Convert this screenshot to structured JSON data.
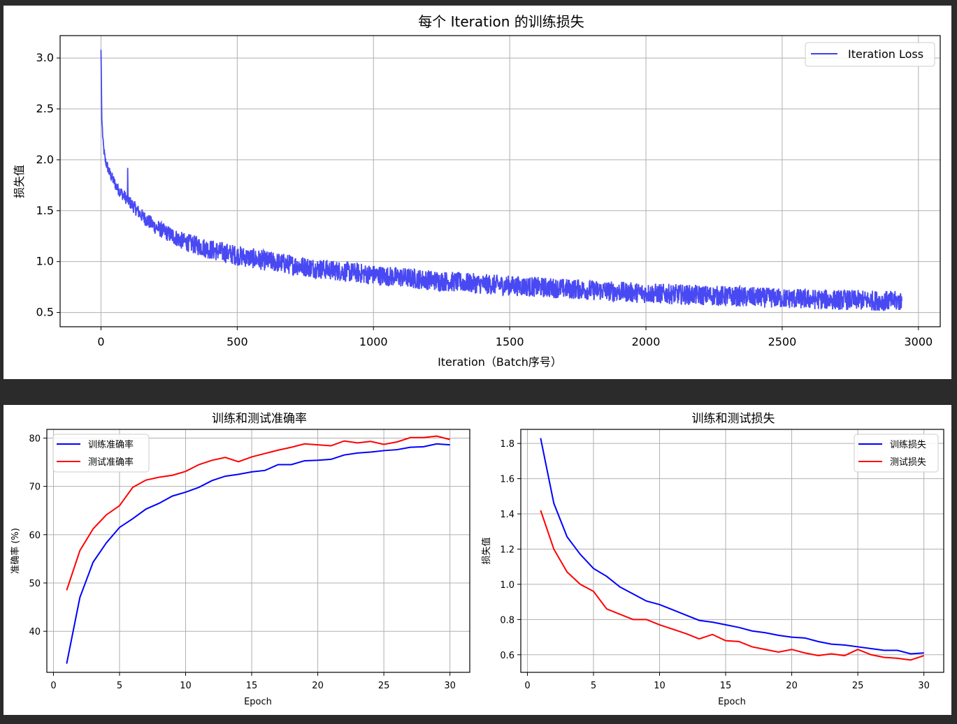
{
  "colors": {
    "blue": "#0000ff",
    "red": "#ff0000",
    "iter_blue": "#3f3ff2",
    "background": "#2b2b2b"
  },
  "chart_data": [
    {
      "type": "line",
      "title": "每个 Iteration 的训练损失",
      "xlabel": "Iteration（Batch序号）",
      "ylabel": "损失值",
      "xlim": [
        -150,
        3080
      ],
      "ylim": [
        0.36,
        3.22
      ],
      "xticks": [
        0,
        500,
        1000,
        1500,
        2000,
        2500,
        3000
      ],
      "yticks": [
        0.5,
        1.0,
        1.5,
        2.0,
        2.5,
        3.0
      ],
      "grid": true,
      "legend_position": "top-right",
      "series": [
        {
          "name": "Iteration Loss",
          "color": "#3f3ff2",
          "n_points": 2940,
          "trend_x": [
            0,
            3,
            8,
            15,
            30,
            60,
            100,
            150,
            200,
            300,
            400,
            500,
            600,
            700,
            800,
            900,
            1000,
            1200,
            1400,
            1600,
            1800,
            2000,
            2200,
            2400,
            2600,
            2800,
            2940
          ],
          "trend_y": [
            3.08,
            2.4,
            2.15,
            2.0,
            1.88,
            1.72,
            1.6,
            1.45,
            1.34,
            1.2,
            1.12,
            1.06,
            1.01,
            0.97,
            0.93,
            0.9,
            0.87,
            0.82,
            0.78,
            0.75,
            0.72,
            0.69,
            0.67,
            0.65,
            0.63,
            0.62,
            0.61
          ],
          "spikes": [
            {
              "x": 98,
              "y": 1.92
            }
          ]
        }
      ]
    },
    {
      "type": "line",
      "title": "训练和测试准确率",
      "xlabel": "Epoch",
      "ylabel": "准确率 (%)",
      "xlim": [
        -0.5,
        31.5
      ],
      "ylim": [
        31.5,
        81.8
      ],
      "xticks": [
        0,
        5,
        10,
        15,
        20,
        25,
        30
      ],
      "yticks": [
        40,
        50,
        60,
        70,
        80
      ],
      "grid": true,
      "legend_position": "top-left",
      "x": [
        1,
        2,
        3,
        4,
        5,
        6,
        7,
        8,
        9,
        10,
        11,
        12,
        13,
        14,
        15,
        16,
        17,
        18,
        19,
        20,
        21,
        22,
        23,
        24,
        25,
        26,
        27,
        28,
        29,
        30
      ],
      "series": [
        {
          "name": "训练准确率",
          "color": "#0000ff",
          "values": [
            33.3,
            47.0,
            54.3,
            58.3,
            61.5,
            63.3,
            65.3,
            66.5,
            68.0,
            68.8,
            69.8,
            71.2,
            72.1,
            72.5,
            73.0,
            73.3,
            74.5,
            74.5,
            75.3,
            75.4,
            75.6,
            76.5,
            76.9,
            77.1,
            77.4,
            77.6,
            78.1,
            78.2,
            78.8,
            78.6
          ]
        },
        {
          "name": "测试准确率",
          "color": "#ff0000",
          "values": [
            48.5,
            56.7,
            61.2,
            64.1,
            66.0,
            69.8,
            71.3,
            71.9,
            72.3,
            73.1,
            74.5,
            75.4,
            76.0,
            75.1,
            76.1,
            76.8,
            77.5,
            78.1,
            78.8,
            78.6,
            78.4,
            79.4,
            79.0,
            79.3,
            78.7,
            79.2,
            80.1,
            80.1,
            80.4,
            79.7
          ]
        }
      ]
    },
    {
      "type": "line",
      "title": "训练和测试损失",
      "xlabel": "Epoch",
      "ylabel": "损失值",
      "xlim": [
        -0.5,
        31.5
      ],
      "ylim": [
        0.5,
        1.88
      ],
      "xticks": [
        0,
        5,
        10,
        15,
        20,
        25,
        30
      ],
      "yticks": [
        0.6,
        0.8,
        1.0,
        1.2,
        1.4,
        1.6,
        1.8
      ],
      "grid": true,
      "legend_position": "top-right",
      "x": [
        1,
        2,
        3,
        4,
        5,
        6,
        7,
        8,
        9,
        10,
        11,
        12,
        13,
        14,
        15,
        16,
        17,
        18,
        19,
        20,
        21,
        22,
        23,
        24,
        25,
        26,
        27,
        28,
        29,
        30
      ],
      "series": [
        {
          "name": "训练损失",
          "color": "#0000ff",
          "values": [
            1.83,
            1.46,
            1.27,
            1.17,
            1.09,
            1.045,
            0.985,
            0.945,
            0.905,
            0.885,
            0.855,
            0.825,
            0.795,
            0.785,
            0.77,
            0.755,
            0.735,
            0.725,
            0.71,
            0.7,
            0.695,
            0.675,
            0.66,
            0.655,
            0.645,
            0.635,
            0.625,
            0.625,
            0.605,
            0.61
          ]
        },
        {
          "name": "测试损失",
          "color": "#ff0000",
          "values": [
            1.42,
            1.2,
            1.07,
            1.0,
            0.96,
            0.86,
            0.83,
            0.8,
            0.8,
            0.77,
            0.745,
            0.72,
            0.69,
            0.715,
            0.68,
            0.675,
            0.645,
            0.63,
            0.615,
            0.63,
            0.61,
            0.595,
            0.605,
            0.595,
            0.63,
            0.6,
            0.585,
            0.58,
            0.57,
            0.595
          ]
        }
      ]
    }
  ]
}
